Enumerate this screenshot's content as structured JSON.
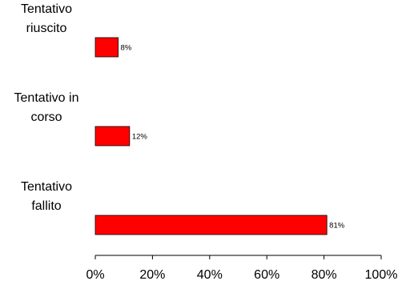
{
  "chart_data": {
    "type": "bar",
    "orientation": "horizontal",
    "categories": [
      [
        "Tentativo",
        "riuscito"
      ],
      [
        "Tentativo in",
        "corso"
      ],
      [
        "Tentativo",
        "fallito"
      ]
    ],
    "values": [
      8,
      12,
      81
    ],
    "data_labels": [
      "8%",
      "12%",
      "81%"
    ],
    "xlim": [
      0,
      100
    ],
    "xticks": [
      0,
      20,
      40,
      60,
      80,
      100
    ],
    "xtick_labels": [
      "0%",
      "20%",
      "40%",
      "60%",
      "80%",
      "100%"
    ],
    "title": "",
    "xlabel": "",
    "ylabel": "",
    "grid": false,
    "legend": "none",
    "colors": {
      "bar_fill": "#ff0000",
      "bar_stroke": "#000000",
      "axis": "#000000"
    }
  }
}
